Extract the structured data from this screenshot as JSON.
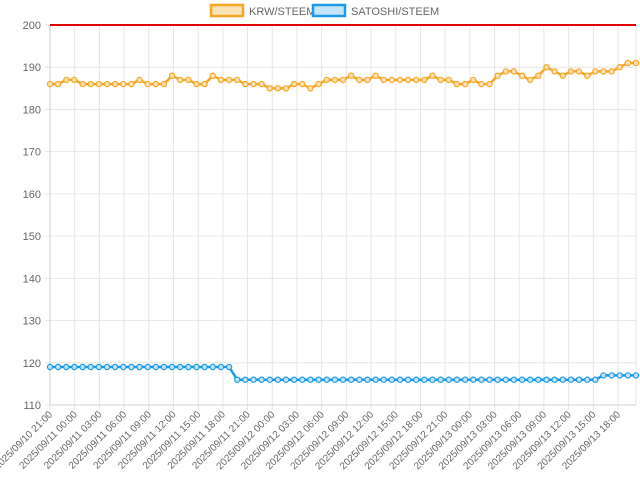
{
  "chart_data": {
    "type": "line",
    "grid": true,
    "legend_position": "top",
    "ylim": [
      110,
      200
    ],
    "yticks": [
      110,
      120,
      130,
      140,
      150,
      160,
      170,
      180,
      190,
      200
    ],
    "reference_line": {
      "value": 200,
      "color": "#e00000"
    },
    "x_tick_labels": [
      "2025/09/10 21:00",
      "2025/09/11 00:00",
      "2025/09/11 03:00",
      "2025/09/11 06:00",
      "2025/09/11 09:00",
      "2025/09/11 12:00",
      "2025/09/11 15:00",
      "2025/09/11 18:00",
      "2025/09/11 21:00",
      "2025/09/12 00:00",
      "2025/09/12 03:00",
      "2025/09/12 06:00",
      "2025/09/12 09:00",
      "2025/09/12 12:00",
      "2025/09/12 15:00",
      "2025/09/12 18:00",
      "2025/09/12 21:00",
      "2025/09/13 00:00",
      "2025/09/13 03:00",
      "2025/09/13 06:00",
      "2025/09/13 09:00",
      "2025/09/13 12:00",
      "2025/09/13 15:00",
      "2025/09/13 18:00"
    ],
    "series": [
      {
        "name": "KRW/STEEM",
        "color": "#f5a623",
        "fill": "#fbe3b8",
        "values": [
          186,
          186,
          187,
          187,
          186,
          186,
          186,
          186,
          186,
          186,
          186,
          187,
          186,
          186,
          186,
          188,
          187,
          187,
          186,
          186,
          188,
          187,
          187,
          187,
          186,
          186,
          186,
          185,
          185,
          185,
          186,
          186,
          185,
          186,
          187,
          187,
          187,
          188,
          187,
          187,
          188,
          187,
          187,
          187,
          187,
          187,
          187,
          188,
          187,
          187,
          186,
          186,
          187,
          186,
          186,
          188,
          189,
          189,
          188,
          187,
          188,
          190,
          189,
          188,
          189,
          189,
          188,
          189,
          189,
          189,
          190,
          191,
          191
        ]
      },
      {
        "name": "SATOSHI/STEEM",
        "color": "#1a9be8",
        "fill": "#c6e4f8",
        "values": [
          119,
          119,
          119,
          119,
          119,
          119,
          119,
          119,
          119,
          119,
          119,
          119,
          119,
          119,
          119,
          119,
          119,
          119,
          119,
          119,
          119,
          119,
          119,
          116,
          116,
          116,
          116,
          116,
          116,
          116,
          116,
          116,
          116,
          116,
          116,
          116,
          116,
          116,
          116,
          116,
          116,
          116,
          116,
          116,
          116,
          116,
          116,
          116,
          116,
          116,
          116,
          116,
          116,
          116,
          116,
          116,
          116,
          116,
          116,
          116,
          116,
          116,
          116,
          116,
          116,
          116,
          116,
          116,
          117,
          117,
          117,
          117,
          117
        ]
      }
    ]
  }
}
